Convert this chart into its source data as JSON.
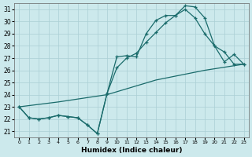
{
  "xlabel": "Humidex (Indice chaleur)",
  "background_color": "#cce9ec",
  "grid_color": "#aacfd4",
  "line_color": "#1a6b6b",
  "xlim": [
    -0.5,
    23.5
  ],
  "ylim": [
    20.5,
    31.5
  ],
  "yticks": [
    21,
    22,
    23,
    24,
    25,
    26,
    27,
    28,
    29,
    30,
    31
  ],
  "xticks": [
    0,
    1,
    2,
    3,
    4,
    5,
    6,
    7,
    8,
    9,
    10,
    11,
    12,
    13,
    14,
    15,
    16,
    17,
    18,
    19,
    20,
    21,
    22,
    23
  ],
  "line1_x": [
    0,
    1,
    2,
    3,
    4,
    5,
    6,
    7,
    8,
    9,
    10,
    11,
    12,
    13,
    14,
    15,
    16,
    17,
    18,
    19,
    20,
    21,
    22,
    23
  ],
  "line1_y": [
    23.0,
    22.1,
    22.0,
    22.1,
    22.3,
    22.2,
    22.1,
    21.5,
    20.8,
    24.1,
    27.1,
    27.2,
    27.1,
    29.0,
    30.1,
    30.5,
    30.5,
    31.3,
    31.2,
    30.3,
    28.0,
    27.5,
    26.5,
    26.5
  ],
  "line2_x": [
    0,
    1,
    2,
    3,
    4,
    5,
    6,
    7,
    8,
    9,
    10,
    11,
    12,
    13,
    14,
    15,
    16,
    17,
    18,
    19,
    20,
    21,
    22,
    23
  ],
  "line2_y": [
    23.0,
    22.1,
    22.0,
    22.1,
    22.3,
    22.2,
    22.1,
    21.5,
    20.8,
    24.1,
    26.2,
    27.0,
    27.4,
    28.3,
    29.1,
    29.9,
    30.5,
    31.0,
    30.3,
    29.0,
    28.0,
    26.7,
    27.3,
    26.5
  ],
  "line3_x": [
    0,
    4,
    9,
    14,
    19,
    23
  ],
  "line3_y": [
    23.0,
    23.4,
    24.0,
    25.2,
    26.0,
    26.5
  ]
}
